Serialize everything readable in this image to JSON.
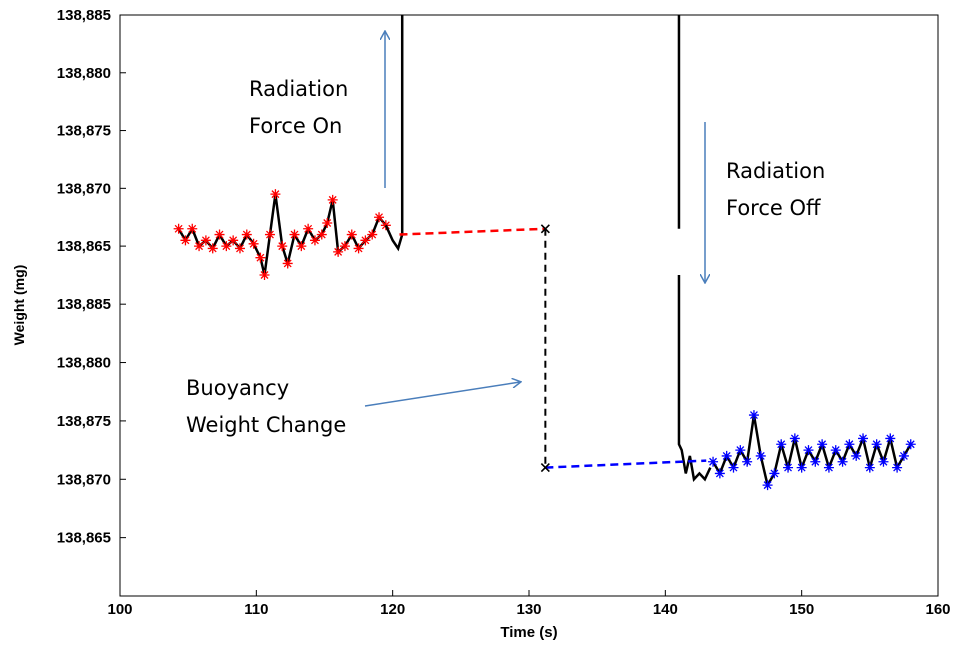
{
  "chart_data": {
    "type": "line",
    "x_label": "Time (s)",
    "y_label": "Weight (mg)",
    "xlim": [
      100,
      160
    ],
    "xticks": [
      100,
      110,
      120,
      130,
      140,
      150,
      160
    ],
    "ylim": [
      138862.5,
      138885
    ],
    "yticks": [
      {
        "value": 138885,
        "label": "138,885"
      },
      {
        "value": 138880,
        "label": "138,880"
      },
      {
        "value": 138875,
        "label": "138,875"
      },
      {
        "value": 138870,
        "label": "138,870"
      },
      {
        "value": 138865,
        "label": "138,865"
      }
    ],
    "y2lim": [
      138860,
      138887.5
    ],
    "y2ticks": [
      {
        "value": 138885,
        "label": "138,885"
      },
      {
        "value": 138880,
        "label": "138,880"
      },
      {
        "value": 138875,
        "label": "138,875"
      },
      {
        "value": 138870,
        "label": "138,870"
      },
      {
        "value": 138865,
        "label": "138,865"
      }
    ],
    "series": [
      {
        "color": "#000000",
        "marker_color": "#ff0000",
        "marker": "star",
        "axis": "y",
        "x": [
          104.3,
          104.8,
          105.3,
          105.8,
          106.3,
          106.8,
          107.3,
          107.8,
          108.3,
          108.8,
          109.3,
          109.8,
          110.3,
          110.6,
          111.0,
          111.4,
          111.9,
          112.3,
          112.8,
          113.3,
          113.8,
          114.3,
          114.8,
          115.2,
          115.6,
          116.0,
          116.5,
          117.0,
          117.5,
          118.0,
          118.5,
          119.0,
          119.5
        ],
        "values": [
          138866.5,
          138865.5,
          138866.5,
          138865,
          138865.5,
          138864.8,
          138866,
          138865,
          138865.5,
          138864.8,
          138866,
          138865.2,
          138864,
          138862.5,
          138866,
          138869.5,
          138865,
          138863.5,
          138866,
          138865,
          138866.5,
          138865.5,
          138866,
          138867,
          138869,
          138864.5,
          138865,
          138866,
          138864.8,
          138865.5,
          138866,
          138867.5,
          138866.8
        ]
      },
      {
        "color": "#000000",
        "axis": "y",
        "x": [
          119.5,
          120.0,
          120.4,
          120.7,
          120.7
        ],
        "values": [
          138866.8,
          138865.5,
          138864.8,
          138866,
          138885
        ]
      },
      {
        "color": "#000000",
        "axis": "y",
        "x": [
          141.0,
          141.0
        ],
        "values": [
          138885,
          138866.5
        ]
      },
      {
        "color": "#ff0000",
        "dash": true,
        "axis": "y",
        "x": [
          120.5,
          131.2
        ],
        "values": [
          138866,
          138866.5
        ]
      },
      {
        "color": "#000000",
        "axis": "y2",
        "x": [
          141.0,
          141.0,
          141.2,
          141.5,
          141.8,
          142.1,
          142.5,
          142.9,
          143.3
        ],
        "values": [
          138887.5,
          138873,
          138872.5,
          138870.5,
          138872,
          138870,
          138870.5,
          138870,
          138871
        ]
      },
      {
        "color": "#0000ff",
        "dash": true,
        "axis": "y2",
        "x": [
          131.2,
          143.0
        ],
        "values": [
          138871,
          138871.6
        ]
      },
      {
        "color": "#000000",
        "marker_color": "#0000ff",
        "marker": "star",
        "axis": "y2",
        "x": [
          143.5,
          144.0,
          144.5,
          145.0,
          145.5,
          146.0,
          146.5,
          147.0,
          147.5,
          148.0,
          148.5,
          149.0,
          149.5,
          150.0,
          150.5,
          151.0,
          151.5,
          152.0,
          152.5,
          153.0,
          153.5,
          154.0,
          154.5,
          155.0,
          155.5,
          156.0,
          156.5,
          157.0,
          157.5,
          158.0
        ],
        "values": [
          138871.5,
          138870.5,
          138872,
          138871,
          138872.5,
          138871.5,
          138875.5,
          138872,
          138869.5,
          138870.5,
          138873,
          138871,
          138873.5,
          138871,
          138872.5,
          138871.5,
          138873,
          138871,
          138872.5,
          138871.5,
          138873,
          138872,
          138873.5,
          138871,
          138873,
          138871.5,
          138873.5,
          138871,
          138872,
          138873
        ]
      }
    ],
    "step": {
      "x": 131.2,
      "from": 138866.5,
      "to": 138871
    },
    "annotations": [
      {
        "lines": [
          "Radiation",
          "Force On"
        ]
      },
      {
        "lines": [
          "Radiation",
          "Force Off"
        ]
      },
      {
        "lines": [
          "Buoyancy",
          "Weight Change"
        ]
      }
    ]
  }
}
